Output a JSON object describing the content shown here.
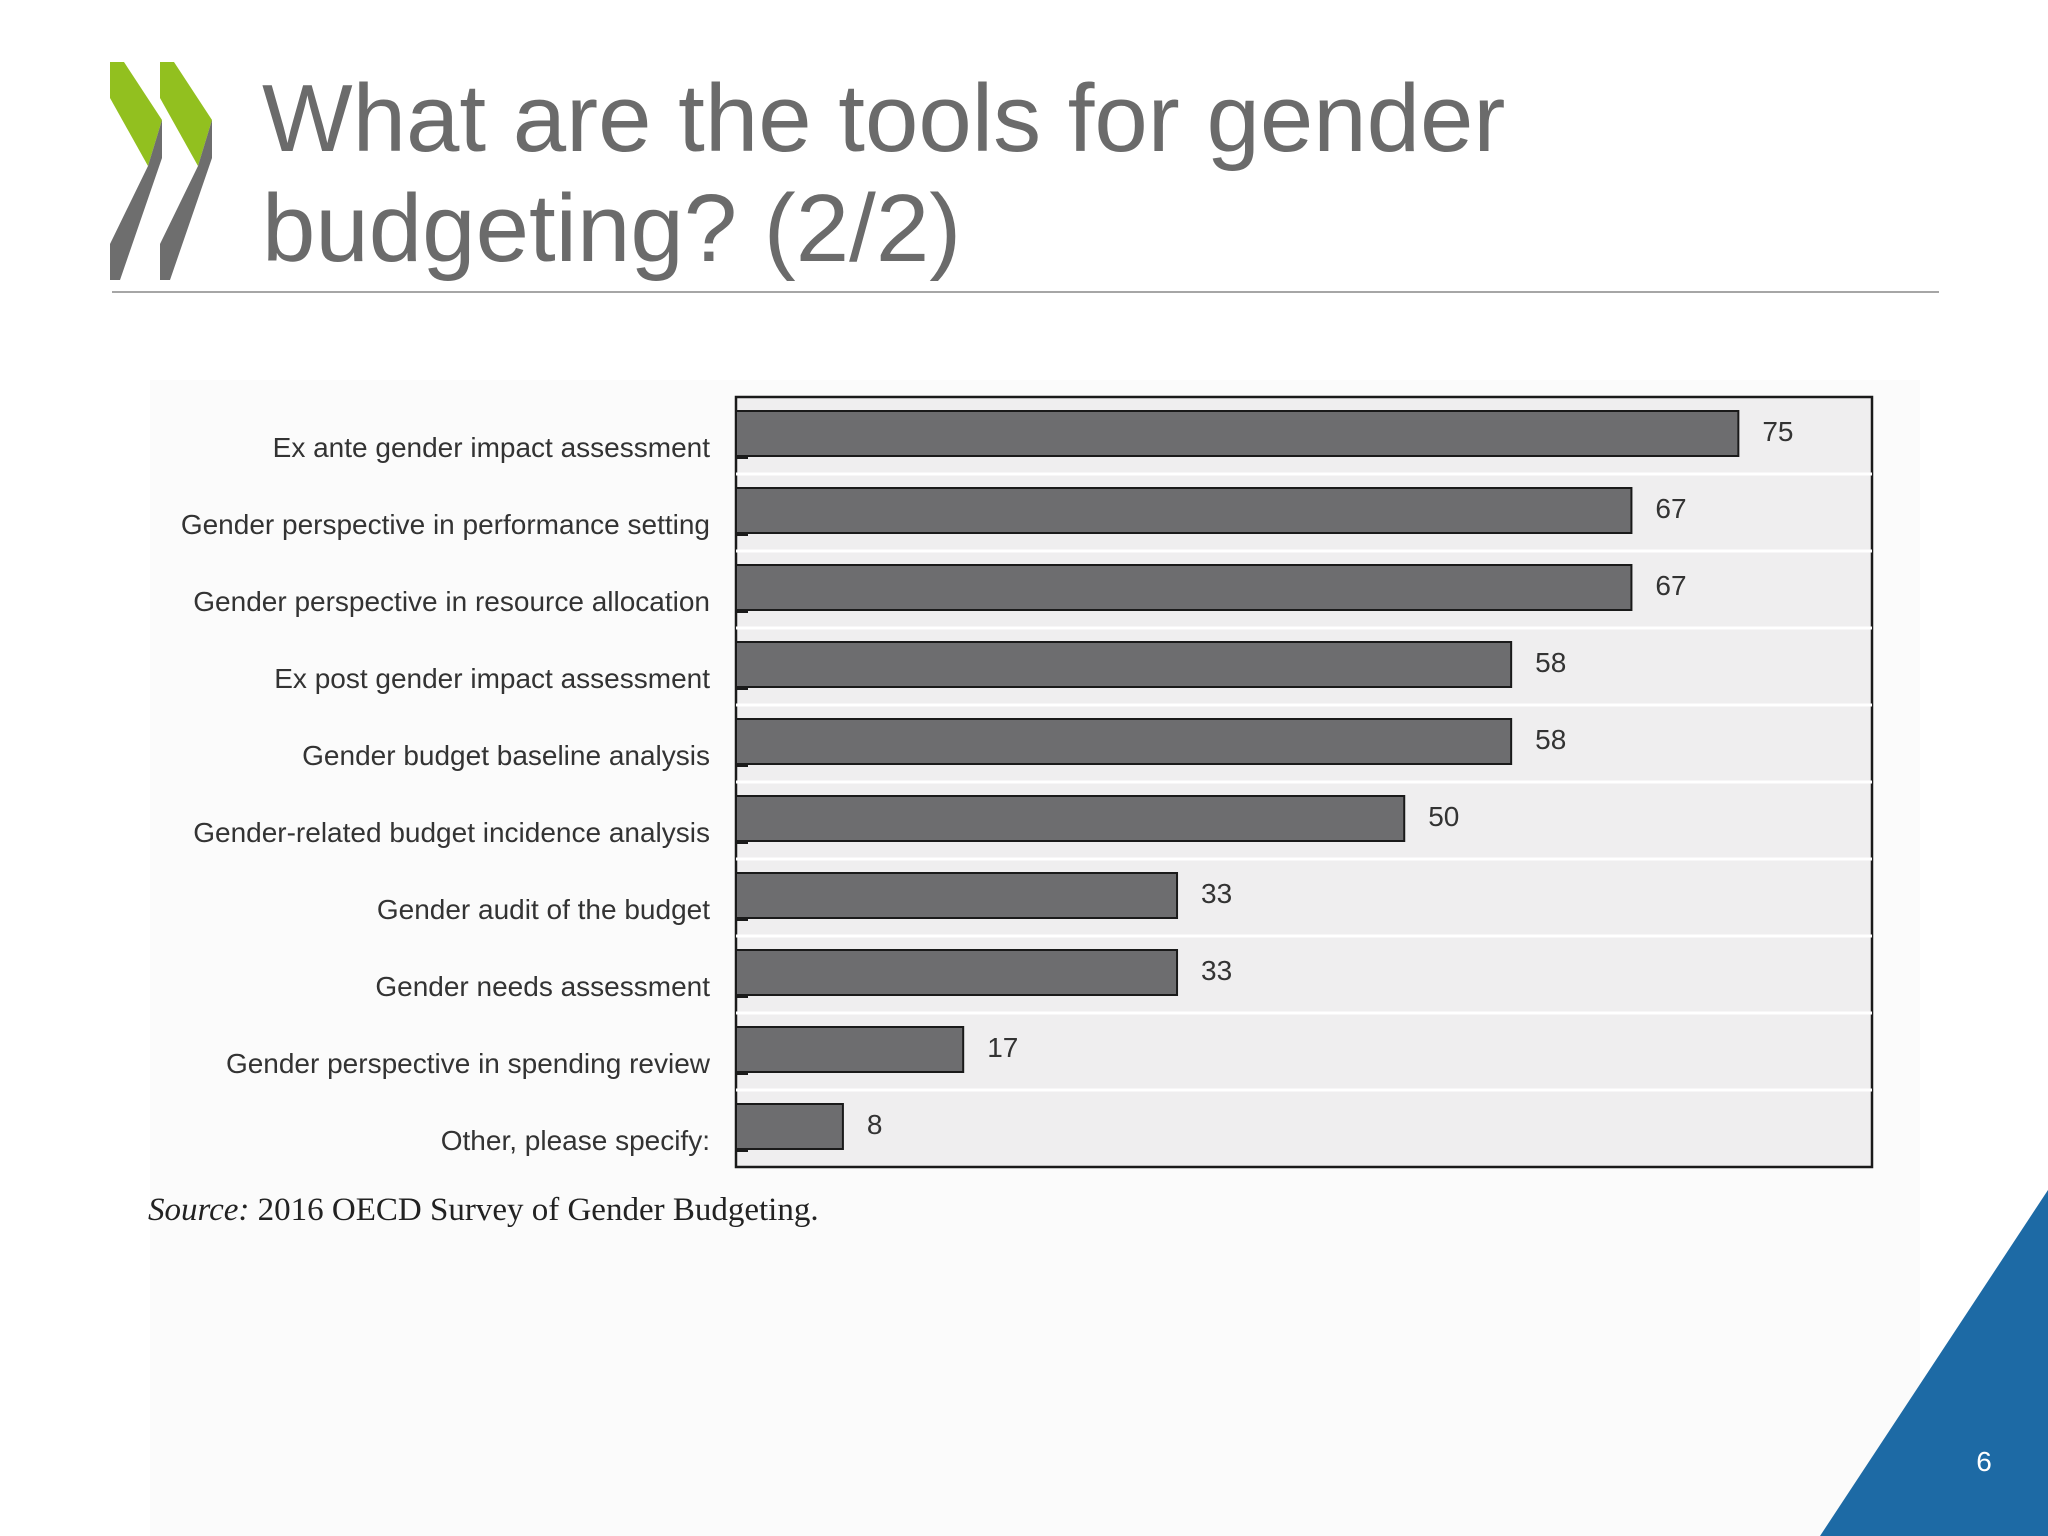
{
  "slide": {
    "title": "What are the tools for gender budgeting? (2/2)",
    "page_number": "6",
    "source_label": "Source:",
    "source_text": "2016 OECD Survey of Gender Budgeting."
  },
  "colors": {
    "title": "#6b6b6b",
    "bar_fill": "#6d6d6f",
    "plot_background": "#efeeef",
    "logo_green": "#92c01f",
    "logo_gray": "#6e6e6e",
    "corner_blue": "#1d6aa5"
  },
  "icons": {
    "logo": "double-chevron-logo"
  },
  "chart_data": {
    "type": "bar",
    "orientation": "horizontal",
    "categories": [
      "Ex ante gender impact assessment",
      "Gender perspective in performance setting",
      "Gender perspective in resource allocation",
      "Ex post gender impact assessment",
      "Gender budget baseline analysis",
      "Gender-related budget incidence analysis",
      "Gender audit of the budget",
      "Gender needs assessment",
      "Gender perspective in spending review",
      "Other, please specify:"
    ],
    "values": [
      75,
      67,
      67,
      58,
      58,
      50,
      33,
      33,
      17,
      8
    ],
    "data_labels": [
      "75",
      "67",
      "67",
      "58",
      "58",
      "50",
      "33",
      "33",
      "17",
      "8"
    ],
    "xlim": [
      0,
      85
    ],
    "grid": true,
    "legend": "none"
  }
}
